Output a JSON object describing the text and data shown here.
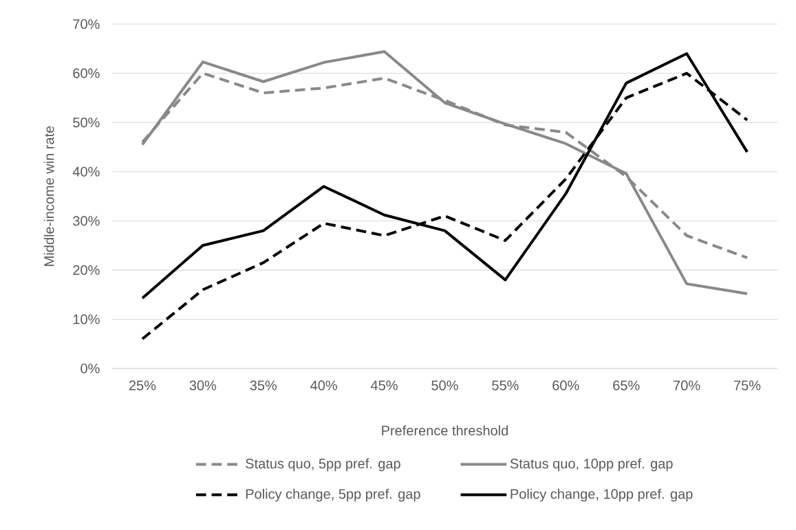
{
  "chart_data": {
    "type": "line",
    "xlabel": "Preference threshold",
    "ylabel": "Middle-income win rate",
    "categories": [
      "25%",
      "30%",
      "35%",
      "40%",
      "45%",
      "50%",
      "55%",
      "60%",
      "65%",
      "70%",
      "75%"
    ],
    "ylim": [
      0,
      70
    ],
    "yticks": [
      {
        "value": 0,
        "label": "0%"
      },
      {
        "value": 10,
        "label": "10%"
      },
      {
        "value": 20,
        "label": "20%"
      },
      {
        "value": 30,
        "label": "30%"
      },
      {
        "value": 40,
        "label": "40%"
      },
      {
        "value": 50,
        "label": "50%"
      },
      {
        "value": 60,
        "label": "60%"
      },
      {
        "value": 70,
        "label": "70%"
      }
    ],
    "grid": "y",
    "legend": "bottom",
    "marker": "none",
    "series": [
      {
        "name": "Status quo, 5pp pref. gap",
        "color": "#898989",
        "line_style": "dashed",
        "values": [
          46,
          60,
          56,
          57,
          59,
          54.5,
          49.5,
          48,
          39,
          27,
          22.5
        ]
      },
      {
        "name": "Status quo, 10pp pref. gap",
        "color": "#898989",
        "line_style": "solid",
        "values": [
          45.5,
          62.3,
          58.3,
          62.2,
          64.4,
          54,
          49.7,
          45.7,
          39.6,
          17.2,
          15.2
        ]
      },
      {
        "name": "Policy change, 5pp pref. gap",
        "color": "#000000",
        "line_style": "dashed",
        "values": [
          6,
          16,
          21.5,
          29.5,
          27,
          31,
          26,
          38.5,
          55,
          60,
          50.5
        ]
      },
      {
        "name": "Policy change, 10pp pref. gap",
        "color": "#000000",
        "line_style": "solid",
        "values": [
          14.3,
          25,
          28,
          37,
          31.2,
          28,
          18,
          35.5,
          58,
          64,
          44
        ]
      }
    ]
  }
}
